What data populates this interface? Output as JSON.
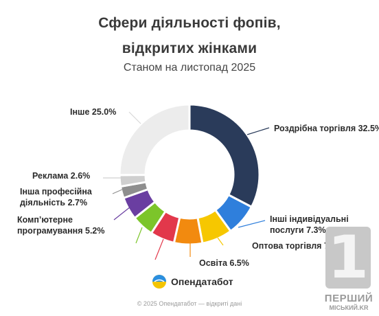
{
  "title_line1": "Сфери діяльності фопів,",
  "title_line2": "відкритих жінками",
  "subtitle": "Станом на листопад 2025",
  "brand": "Опендатабот",
  "footer": "© 2025 Опендатабот — відкриті дані",
  "watermark": {
    "digit": "1",
    "line1": "ПЕРШИЙ",
    "line2": "МІСЬКИЙ.KR"
  },
  "chart_data": {
    "type": "pie",
    "donut": true,
    "title": "Сфери діяльності фопів, відкритих жінками",
    "subtitle": "Станом на листопад 2025",
    "slices": [
      {
        "label": "Роздрібна торгівля",
        "value": 32.5,
        "text": "Роздрібна торгівля 32.5%",
        "color": "#2a3b5a"
      },
      {
        "label": "Інші індивідуальні послуги",
        "value": 7.3,
        "text_lines": [
          "Інші індивідуальні",
          "послуги 7.3%"
        ],
        "color": "#2f7fdc"
      },
      {
        "label": "Оптова торгівля",
        "value": 7.0,
        "text": "Оптова торгівля 7.0%",
        "color": "#f6c700"
      },
      {
        "label": "Освіта",
        "value": 6.5,
        "text": "Освіта 6.5%",
        "color": "#f28a0f"
      },
      {
        "label": "",
        "value": 5.6,
        "text": "",
        "color": "#e2384b"
      },
      {
        "label": "",
        "value": 5.1,
        "text": "",
        "color": "#7cc52a"
      },
      {
        "label": "Комп’ютерне програмування",
        "value": 5.2,
        "text_lines": [
          "Комп’ютерне",
          "програмування 5.2%"
        ],
        "color": "#6a3ea1"
      },
      {
        "label": "Інша професійна діяльність",
        "value": 2.7,
        "text_lines": [
          "Інша професійна",
          "діяльність 2.7%"
        ],
        "color": "#8e8e8e"
      },
      {
        "label": "Реклама",
        "value": 2.6,
        "text": "Реклама 2.6%",
        "color": "#cfcfcf"
      },
      {
        "label": "Інше",
        "value": 25.0,
        "text": "Інше 25.0%",
        "color": "#ececec"
      }
    ]
  }
}
